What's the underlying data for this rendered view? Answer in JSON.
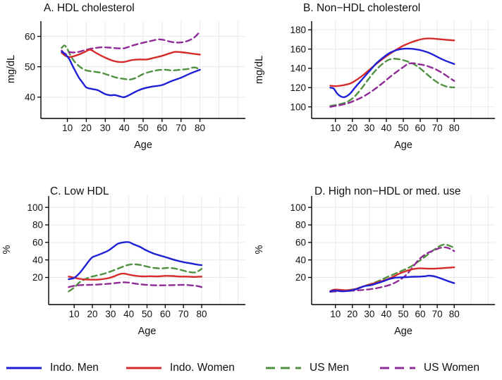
{
  "colors": {
    "indo_men": "#1f1fd6",
    "indo_women": "#d62b2b",
    "us_men": "#4f9140",
    "us_women": "#8e2b96",
    "grid": "#e9e9e9",
    "axis": "#000000",
    "background": "#ffffff"
  },
  "legend": {
    "items": [
      {
        "label": "Indo. Men",
        "series": "indo_men",
        "dash": false
      },
      {
        "label": "Indo. Women",
        "series": "indo_women",
        "dash": false
      },
      {
        "label": "US Men",
        "series": "us_men",
        "dash": true
      },
      {
        "label": "US Women",
        "series": "us_women",
        "dash": true
      }
    ]
  },
  "chart_data": [
    {
      "type": "line",
      "title": "A. HDL cholesterol",
      "xlabel": "Age",
      "ylabel": "mg/dL",
      "xlim": [
        -4,
        104
      ],
      "ylim": [
        33,
        65
      ],
      "xticks": [
        10,
        20,
        30,
        40,
        50,
        60,
        70,
        80
      ],
      "xgrid": [
        10,
        20,
        30,
        40,
        50,
        60,
        70,
        80,
        90,
        100
      ],
      "yticks": [
        40,
        50,
        60
      ],
      "grid": true,
      "series": [
        {
          "key": "us_men",
          "name": "US Men",
          "dash": true,
          "x": [
            7,
            8.5,
            10,
            12,
            14,
            17,
            20,
            24,
            28,
            32,
            36,
            40,
            43,
            46,
            50,
            54,
            58,
            62,
            65,
            68,
            71,
            74,
            77,
            80
          ],
          "y": [
            56.2,
            57,
            55.8,
            53.3,
            51.5,
            49.8,
            48.8,
            48.4,
            48,
            47.2,
            46.4,
            46,
            45.8,
            46.3,
            47.6,
            48.4,
            48.9,
            49,
            48.8,
            48.9,
            49.1,
            49.3,
            49.8,
            49.1
          ]
        },
        {
          "key": "us_women",
          "name": "US Women",
          "dash": true,
          "x": [
            7,
            9,
            11,
            13,
            16,
            20,
            24,
            28,
            32,
            36,
            40,
            44,
            48,
            52,
            55,
            58,
            61,
            64,
            67,
            70,
            73,
            76,
            78,
            80
          ],
          "y": [
            55.3,
            54.2,
            54.8,
            54.7,
            54.9,
            55.6,
            56.1,
            56.4,
            56.3,
            56.1,
            56.1,
            56.9,
            57.6,
            58.2,
            58.6,
            59,
            58.8,
            58.3,
            58,
            58,
            58.4,
            59.2,
            60.2,
            61.6
          ]
        },
        {
          "key": "indo_women",
          "name": "Indo. Women",
          "dash": false,
          "x": [
            7,
            9,
            11,
            13,
            16,
            19,
            22,
            25,
            28,
            31,
            34,
            37,
            40,
            44,
            48,
            52,
            56,
            60,
            64,
            67,
            70,
            74,
            80
          ],
          "y": [
            54.6,
            53.6,
            53.2,
            53.4,
            54,
            54.8,
            55.6,
            54.6,
            53.6,
            52.7,
            52,
            51.6,
            51.6,
            52.2,
            52.4,
            52.4,
            53,
            53.6,
            54.4,
            54.9,
            54.8,
            54.5,
            54
          ]
        },
        {
          "key": "indo_men",
          "name": "Indo. Men",
          "dash": false,
          "x": [
            7,
            9,
            11,
            13,
            16,
            18,
            20,
            23,
            26,
            30,
            33,
            35,
            38,
            40,
            43,
            46,
            50,
            55,
            60,
            65,
            70,
            75,
            80
          ],
          "y": [
            55,
            54,
            52.5,
            50,
            46.5,
            44.8,
            43.2,
            42.7,
            42.3,
            41,
            40.6,
            40.7,
            40.2,
            40,
            40.8,
            41.8,
            42.8,
            43.5,
            44,
            45.3,
            46.4,
            47.8,
            49
          ]
        }
      ]
    },
    {
      "type": "line",
      "title": "B. Non−HDL cholesterol",
      "xlabel": "Age",
      "ylabel": "mg/dL",
      "xlim": [
        -4,
        104
      ],
      "ylim": [
        88,
        189
      ],
      "xticks": [
        10,
        20,
        30,
        40,
        50,
        60,
        70,
        80
      ],
      "xgrid": [
        10,
        20,
        30,
        40,
        50,
        60,
        70,
        80,
        90,
        100
      ],
      "yticks": [
        100,
        120,
        140,
        160,
        180
      ],
      "grid": true,
      "series": [
        {
          "key": "us_men",
          "name": "US Men",
          "dash": true,
          "x": [
            7,
            10,
            13,
            16,
            19,
            22,
            26,
            30,
            34,
            38,
            41,
            44,
            48,
            52,
            56,
            60,
            64,
            68,
            72,
            76,
            80
          ],
          "y": [
            101,
            102,
            103,
            104.5,
            107.5,
            112,
            120.5,
            130,
            138.5,
            145,
            148.5,
            150,
            149.3,
            147.4,
            144.5,
            139.8,
            133.8,
            128,
            123.5,
            120.8,
            120.2
          ]
        },
        {
          "key": "us_women",
          "name": "US Women",
          "dash": true,
          "x": [
            7,
            10,
            14,
            18,
            22,
            26,
            30,
            34,
            38,
            42,
            46,
            50,
            53,
            56,
            59,
            62,
            66,
            70,
            74,
            78,
            80
          ],
          "y": [
            100,
            101,
            102.3,
            104.2,
            107,
            110.3,
            114.5,
            119.5,
            125,
            130.8,
            136.3,
            141.3,
            144.8,
            145.3,
            144.3,
            143.4,
            141.3,
            138.2,
            134,
            129.3,
            127
          ]
        },
        {
          "key": "indo_women",
          "name": "Indo. Women",
          "dash": false,
          "x": [
            7,
            10,
            13,
            16,
            19,
            22,
            26,
            30,
            34,
            38,
            42,
            46,
            50,
            54,
            58,
            62,
            66,
            70,
            75,
            80
          ],
          "y": [
            122,
            121.5,
            122,
            123,
            124.5,
            127.5,
            132.5,
            138.5,
            144.5,
            150,
            155,
            159.5,
            163.5,
            166.5,
            169,
            170.7,
            171,
            170.5,
            169.7,
            169
          ]
        },
        {
          "key": "indo_men",
          "name": "Indo. Men",
          "dash": false,
          "x": [
            7,
            9,
            11,
            13,
            15,
            17,
            19,
            22,
            26,
            30,
            34,
            38,
            42,
            46,
            50,
            54,
            58,
            62,
            66,
            70,
            74,
            80
          ],
          "y": [
            120,
            119,
            114,
            111,
            110,
            111.5,
            114.5,
            121,
            129,
            137,
            145,
            151,
            156,
            159,
            160.3,
            160.4,
            159.6,
            158,
            155.5,
            152,
            148.5,
            144.5
          ]
        }
      ]
    },
    {
      "type": "line",
      "title": "C. Low HDL",
      "xlabel": "Age",
      "ylabel": "%",
      "xlim": [
        -4,
        104
      ],
      "ylim": [
        -11,
        113
      ],
      "xticks": [
        10,
        20,
        30,
        40,
        50,
        60,
        70,
        80
      ],
      "xgrid": [
        10,
        20,
        30,
        40,
        50,
        60,
        70,
        80,
        90,
        100
      ],
      "yticks": [
        20,
        40,
        60,
        80,
        100
      ],
      "grid": true,
      "series": [
        {
          "key": "us_men",
          "name": "US Men",
          "dash": true,
          "x": [
            7,
            10,
            13,
            16,
            19,
            22,
            26,
            30,
            34,
            38,
            41,
            44,
            47,
            50,
            54,
            58,
            61,
            64,
            67,
            70,
            73,
            76,
            78,
            80
          ],
          "y": [
            4,
            8.5,
            14.5,
            18,
            20.5,
            22,
            24,
            26.8,
            30,
            33.3,
            34.8,
            34.9,
            34,
            32.4,
            30.8,
            30.3,
            30.9,
            30.6,
            29.4,
            27.8,
            26.3,
            25.6,
            27,
            29.8
          ]
        },
        {
          "key": "us_women",
          "name": "US Women",
          "dash": true,
          "x": [
            7,
            10,
            14,
            18,
            22,
            26,
            30,
            34,
            37,
            40,
            43,
            46,
            50,
            54,
            58,
            62,
            66,
            70,
            74,
            77,
            80
          ],
          "y": [
            9,
            10.4,
            11.3,
            11.5,
            11.8,
            12.3,
            12.9,
            13.9,
            14.4,
            14.1,
            13.1,
            12.2,
            11.5,
            11,
            11,
            11.1,
            11.3,
            11.5,
            11,
            10.4,
            9
          ]
        },
        {
          "key": "indo_women",
          "name": "Indo. Women",
          "dash": false,
          "x": [
            7,
            10,
            13,
            16,
            20,
            24,
            28,
            31,
            34,
            36,
            38,
            41,
            44,
            48,
            52,
            56,
            60,
            64,
            68,
            72,
            76,
            80
          ],
          "y": [
            21,
            19.7,
            18.4,
            17.7,
            17.4,
            17.7,
            18.8,
            20.5,
            23,
            24.3,
            24.2,
            22.7,
            21.8,
            21.2,
            21.4,
            21.2,
            21.8,
            21.6,
            21,
            21,
            20.6,
            21
          ]
        },
        {
          "key": "indo_men",
          "name": "Indo. Men",
          "dash": false,
          "x": [
            7,
            10,
            13,
            16,
            18,
            20,
            23,
            26,
            29,
            32,
            34,
            37,
            40,
            43,
            46,
            50,
            54,
            58,
            62,
            66,
            70,
            74,
            78,
            80
          ],
          "y": [
            18,
            19.5,
            25,
            33,
            38.5,
            43,
            45.5,
            48,
            51,
            55.5,
            58.5,
            60,
            60.3,
            57.5,
            55,
            50.5,
            47,
            44.5,
            42,
            39.5,
            37.5,
            36,
            34.5,
            34
          ]
        }
      ]
    },
    {
      "type": "line",
      "title": "D. High non−HDL or med. use",
      "xlabel": "Age",
      "ylabel": "%",
      "xlim": [
        -4,
        104
      ],
      "ylim": [
        -11,
        113
      ],
      "xticks": [
        10,
        20,
        30,
        40,
        50,
        60,
        70,
        80
      ],
      "xgrid": [
        10,
        20,
        30,
        40,
        50,
        60,
        70,
        80,
        90,
        100
      ],
      "yticks": [
        20,
        40,
        60,
        80,
        100
      ],
      "grid": true,
      "series": [
        {
          "key": "us_men",
          "name": "US Men",
          "dash": true,
          "x": [
            7,
            10,
            13,
            16,
            19,
            22,
            25,
            28,
            31,
            34,
            37,
            40,
            43,
            46,
            49,
            52,
            55,
            58,
            61,
            64,
            67,
            70,
            72,
            74,
            76,
            78,
            80
          ],
          "y": [
            4,
            4.4,
            4.6,
            5,
            5.9,
            7,
            8.8,
            10.8,
            12.7,
            14.8,
            17.2,
            20,
            22.5,
            25,
            27.5,
            30,
            33,
            37,
            41,
            45.5,
            50,
            54,
            56.3,
            57.5,
            57,
            55.5,
            54
          ]
        },
        {
          "key": "us_women",
          "name": "US Women",
          "dash": true,
          "x": [
            7,
            10,
            14,
            18,
            22,
            26,
            30,
            34,
            38,
            41,
            44,
            47,
            50,
            53,
            56,
            59,
            62,
            65,
            68,
            71,
            73,
            75,
            77,
            80
          ],
          "y": [
            3.6,
            4,
            4.3,
            4.7,
            5.1,
            5.7,
            6.5,
            7.6,
            9.3,
            10.8,
            13,
            16,
            20,
            25.5,
            33,
            40,
            45,
            48.5,
            51,
            53.3,
            54.2,
            54.3,
            53.2,
            50
          ]
        },
        {
          "key": "indo_women",
          "name": "Indo. Women",
          "dash": false,
          "x": [
            7,
            9,
            12,
            15,
            18,
            21,
            24,
            27,
            30,
            33,
            36,
            39,
            42,
            45,
            48,
            51,
            54,
            57,
            60,
            64,
            68,
            72,
            76,
            80
          ],
          "y": [
            4.5,
            6,
            6,
            5.4,
            5.6,
            6.3,
            8,
            10,
            11.7,
            13.4,
            15,
            16.8,
            19,
            21.7,
            24.6,
            26.8,
            28.7,
            29.9,
            30.4,
            30.1,
            30,
            30.5,
            31,
            31.5
          ]
        },
        {
          "key": "indo_men",
          "name": "Indo. Men",
          "dash": false,
          "x": [
            7,
            9,
            11,
            14,
            17,
            20,
            23,
            26,
            28,
            31,
            34,
            38,
            42,
            45,
            48,
            52,
            56,
            60,
            63,
            65,
            68,
            71,
            74,
            77,
            80
          ],
          "y": [
            4,
            5,
            4.8,
            4.2,
            4.5,
            5.5,
            7,
            9.3,
            10.4,
            11.2,
            13,
            15.5,
            18.3,
            19.6,
            20,
            20.3,
            20.8,
            21,
            21.4,
            22,
            21.4,
            19.6,
            17.5,
            15.3,
            13.5
          ]
        }
      ]
    }
  ]
}
